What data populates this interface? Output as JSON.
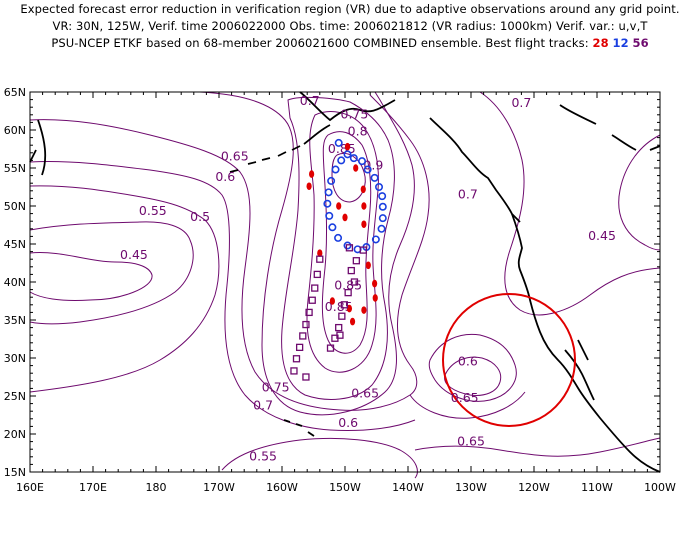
{
  "header": {
    "line1": "Expected forecast error reduction in verification region (VR) due to adaptive observations around any grid point.",
    "line2": "VR: 30N, 125W, Verif. time 2006022000   Obs. time: 2006021812 (VR radius: 1000km)    Verif. var.: u,v,T",
    "line3_prefix": "PSU-NCEP ETKF based on 68-member 2006021600 COMBINED ensemble.  Best flight tracks:",
    "track1": "28",
    "track2": "12",
    "track3": "56"
  },
  "colors": {
    "contour": "#6e0a6e",
    "track_28": "#e00000",
    "track_12": "#1a3fe0",
    "track_56": "#6e0a6e",
    "vr_circle": "#e00000",
    "coast": "#000000"
  },
  "axes": {
    "lon_labels": [
      "160E",
      "170E",
      "180",
      "170W",
      "160W",
      "150W",
      "140W",
      "130W",
      "120W",
      "110W",
      "100W"
    ],
    "lat_labels": [
      "65N",
      "60N",
      "55N",
      "50N",
      "45N",
      "40N",
      "35N",
      "30N",
      "25N",
      "20N",
      "15N"
    ]
  },
  "contour_labels": [
    {
      "text": "0.7",
      "lon": -155.6,
      "lat": 63.3
    },
    {
      "text": "0.75",
      "lon": -148.5,
      "lat": 61.5
    },
    {
      "text": "0.8",
      "lon": -148.0,
      "lat": 59.3
    },
    {
      "text": "0.85",
      "lon": -150.5,
      "lat": 57.0
    },
    {
      "text": "0.9",
      "lon": -145.5,
      "lat": 54.8
    },
    {
      "text": "0.65",
      "lon": -167.5,
      "lat": 56.0
    },
    {
      "text": "0.6",
      "lon": -169.0,
      "lat": 53.3
    },
    {
      "text": "0.55",
      "lon": -180.5,
      "lat": 48.8
    },
    {
      "text": "0.5",
      "lon": -173.0,
      "lat": 48.0
    },
    {
      "text": "0.45",
      "lon": -183.5,
      "lat": 43.0
    },
    {
      "text": "0.85",
      "lon": -149.5,
      "lat": 39.0
    },
    {
      "text": "0.85",
      "lon": -151.0,
      "lat": 36.2
    },
    {
      "text": "0.7",
      "lon": -130.5,
      "lat": 51.0
    },
    {
      "text": "0.7",
      "lon": -122.0,
      "lat": 63.0
    },
    {
      "text": "0.45",
      "lon": -109.2,
      "lat": 45.5
    },
    {
      "text": "0.75",
      "lon": -161.0,
      "lat": 25.6
    },
    {
      "text": "0.7",
      "lon": -163.0,
      "lat": 23.2
    },
    {
      "text": "0.65",
      "lon": -146.8,
      "lat": 24.8
    },
    {
      "text": "0.6",
      "lon": -149.5,
      "lat": 20.9
    },
    {
      "text": "0.55",
      "lon": -163.0,
      "lat": 16.5
    },
    {
      "text": "0.6",
      "lon": -130.5,
      "lat": 29.0
    },
    {
      "text": "0.65",
      "lon": -131.0,
      "lat": 24.2
    },
    {
      "text": "0.65",
      "lon": -130.0,
      "lat": 18.5
    }
  ],
  "tracks": {
    "track_28_points": [
      [
        -149.6,
        57.8
      ],
      [
        -148.3,
        55.0
      ],
      [
        -147.1,
        52.2
      ],
      [
        -147.0,
        50.0
      ],
      [
        -147.0,
        47.6
      ],
      [
        -146.3,
        42.2
      ],
      [
        -145.3,
        39.8
      ],
      [
        -145.2,
        37.9
      ],
      [
        -147.0,
        36.3
      ],
      [
        -148.8,
        34.8
      ],
      [
        -149.3,
        36.5
      ],
      [
        -152.0,
        37.5
      ],
      [
        -154.0,
        43.8
      ],
      [
        -155.7,
        52.6
      ],
      [
        -155.3,
        54.2
      ],
      [
        -151.0,
        50.0
      ],
      [
        -150.0,
        48.5
      ]
    ],
    "track_12_points": [
      [
        -151.0,
        58.3
      ],
      [
        -149.6,
        56.8
      ],
      [
        -148.6,
        56.3
      ],
      [
        -147.3,
        55.9
      ],
      [
        -146.4,
        54.8
      ],
      [
        -145.3,
        53.7
      ],
      [
        -144.6,
        52.5
      ],
      [
        -144.1,
        51.3
      ],
      [
        -144.0,
        49.9
      ],
      [
        -144.0,
        48.4
      ],
      [
        -144.2,
        47.0
      ],
      [
        -145.1,
        45.6
      ],
      [
        -146.6,
        44.6
      ],
      [
        -148.0,
        44.3
      ],
      [
        -149.6,
        44.8
      ],
      [
        -151.1,
        45.8
      ],
      [
        -152.0,
        47.2
      ],
      [
        -152.5,
        48.7
      ],
      [
        -152.8,
        50.3
      ],
      [
        -152.6,
        51.8
      ],
      [
        -152.2,
        53.3
      ],
      [
        -151.5,
        54.8
      ],
      [
        -150.6,
        56.0
      ]
    ],
    "track_56_points": [
      [
        -147.1,
        44.2
      ],
      [
        -148.2,
        42.8
      ],
      [
        -149.0,
        41.5
      ],
      [
        -148.5,
        40.0
      ],
      [
        -149.5,
        38.6
      ],
      [
        -150.1,
        37.0
      ],
      [
        -150.5,
        35.5
      ],
      [
        -151.0,
        34.0
      ],
      [
        -151.6,
        32.6
      ],
      [
        -152.3,
        31.3
      ],
      [
        -154.0,
        43.0
      ],
      [
        -154.4,
        41.0
      ],
      [
        -154.8,
        39.2
      ],
      [
        -155.2,
        37.6
      ],
      [
        -155.7,
        36.0
      ],
      [
        -156.2,
        34.4
      ],
      [
        -156.7,
        32.9
      ],
      [
        -157.2,
        31.4
      ],
      [
        -157.7,
        29.9
      ],
      [
        -158.1,
        28.3
      ],
      [
        -156.2,
        27.5
      ],
      [
        -150.8,
        33.0
      ],
      [
        -149.3,
        44.5
      ]
    ]
  },
  "verification_region": {
    "center_lon": -125,
    "center_lat": 30,
    "radius_km": 1000
  }
}
